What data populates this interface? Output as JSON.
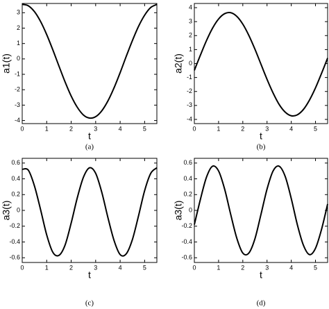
{
  "chart_data": [
    {
      "type": "line",
      "caption": "(a)",
      "xlabel": "t",
      "ylabel": "a1(t)",
      "x": [
        0,
        0.25,
        0.5,
        0.75,
        1,
        1.25,
        1.5,
        1.75,
        2,
        2.25,
        2.5,
        2.75,
        3,
        3.25,
        3.5,
        3.75,
        4,
        4.25,
        4.5,
        4.75,
        5,
        5.25,
        5.5
      ],
      "series": [
        {
          "color": "#000000",
          "values": [
            3.54,
            3.45,
            3.07,
            2.43,
            1.58,
            0.59,
            -0.46,
            -1.49,
            -2.41,
            -3.14,
            -3.64,
            -3.84,
            -3.75,
            -3.37,
            -2.73,
            -1.88,
            -0.89,
            0.17,
            1.19,
            2.11,
            2.84,
            3.34,
            3.54
          ]
        }
      ],
      "xlim": [
        0,
        5.5
      ],
      "xticks": [
        0,
        1,
        2,
        3,
        4,
        5
      ],
      "ylim": [
        -4.2,
        3.6
      ],
      "yticks": [
        -4,
        -3,
        -2,
        -1,
        0,
        1,
        2,
        3
      ]
    },
    {
      "type": "line",
      "caption": "(b)",
      "xlabel": "t",
      "ylabel": "a2(t)",
      "x": [
        0,
        0.25,
        0.5,
        0.75,
        1,
        1.25,
        1.5,
        1.75,
        2,
        2.25,
        2.5,
        2.75,
        3,
        3.25,
        3.5,
        3.75,
        4,
        4.25,
        4.5,
        4.75,
        5,
        5.25,
        5.5
      ],
      "series": [
        {
          "color": "#000000",
          "values": [
            -0.49,
            0.6,
            1.64,
            2.53,
            3.19,
            3.57,
            3.64,
            3.38,
            2.82,
            2.01,
            1.03,
            -0.05,
            -1.13,
            -2.11,
            -2.93,
            -3.48,
            -3.74,
            -3.67,
            -3.29,
            -2.62,
            -1.74,
            -0.7,
            0.39
          ]
        }
      ],
      "xlim": [
        0,
        5.5
      ],
      "xticks": [
        0,
        1,
        2,
        3,
        4,
        5
      ],
      "ylim": [
        -4.3,
        4.3
      ],
      "yticks": [
        -4,
        -3,
        -2,
        -1,
        0,
        1,
        2,
        3,
        4
      ]
    },
    {
      "type": "line",
      "caption": "(c)",
      "xlabel": "t",
      "ylabel": "a3(t)",
      "x": [
        0,
        0.25,
        0.5,
        0.75,
        1,
        1.25,
        1.5,
        1.75,
        2,
        2.25,
        2.5,
        2.75,
        3,
        3.25,
        3.5,
        3.75,
        4,
        4.25,
        4.5,
        4.75,
        5,
        5.25,
        5.5
      ],
      "series": [
        {
          "color": "#000000",
          "values": [
            0.52,
            0.51,
            0.31,
            0.01,
            -0.31,
            -0.53,
            -0.57,
            -0.44,
            -0.16,
            0.16,
            0.42,
            0.54,
            0.47,
            0.23,
            -0.09,
            -0.38,
            -0.56,
            -0.55,
            -0.37,
            -0.07,
            0.25,
            0.47,
            0.54
          ]
        }
      ],
      "xlim": [
        0,
        5.5
      ],
      "xticks": [
        0,
        1,
        2,
        3,
        4,
        5
      ],
      "ylim": [
        -0.66,
        0.66
      ],
      "yticks": [
        -0.6,
        -0.4,
        -0.2,
        0,
        0.2,
        0.4,
        0.6
      ]
    },
    {
      "type": "line",
      "caption": "(d)",
      "xlabel": "t",
      "ylabel": "a3(t)",
      "x": [
        0,
        0.25,
        0.5,
        0.75,
        1,
        1.25,
        1.5,
        1.75,
        2,
        2.25,
        2.5,
        2.75,
        3,
        3.25,
        3.5,
        3.75,
        4,
        4.25,
        4.5,
        4.75,
        5,
        5.25,
        5.5
      ],
      "series": [
        {
          "color": "#000000",
          "values": [
            -0.18,
            0.14,
            0.42,
            0.56,
            0.5,
            0.27,
            -0.05,
            -0.35,
            -0.54,
            -0.54,
            -0.36,
            -0.05,
            0.27,
            0.5,
            0.56,
            0.43,
            0.15,
            -0.18,
            -0.44,
            -0.56,
            -0.48,
            -0.24,
            0.08
          ]
        }
      ],
      "xlim": [
        0,
        5.5
      ],
      "xticks": [
        0,
        1,
        2,
        3,
        4,
        5
      ],
      "ylim": [
        -0.66,
        0.66
      ],
      "yticks": [
        -0.6,
        -0.4,
        -0.2,
        0,
        0.2,
        0.4,
        0.6
      ]
    }
  ]
}
